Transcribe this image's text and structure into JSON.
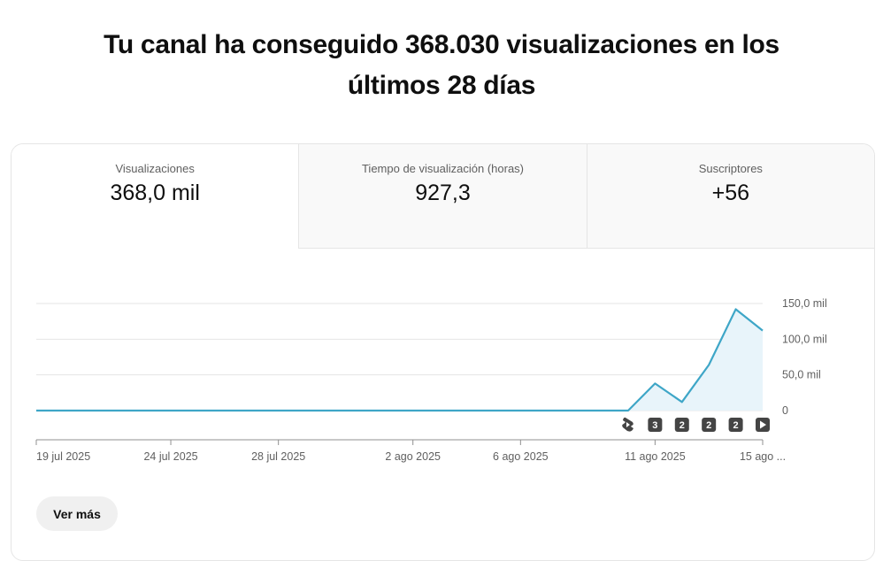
{
  "headline": {
    "line1": "Tu canal ha conseguido 368.030 visualizaciones en los",
    "line2": "últimos 28 días"
  },
  "tabs": [
    {
      "label": "Visualizaciones",
      "value": "368,0 mil",
      "active": true
    },
    {
      "label": "Tiempo de visualización (horas)",
      "value": "927,3",
      "active": false
    },
    {
      "label": "Suscriptores",
      "value": "+56",
      "active": false
    }
  ],
  "chart_data": {
    "type": "area",
    "color": "#3ea6c7",
    "fill_color": "#e8f4fa",
    "y_ticks": [
      {
        "value": 150000,
        "label": "150,0 mil"
      },
      {
        "value": 100000,
        "label": "100,0 mil"
      },
      {
        "value": 50000,
        "label": "50,0 mil"
      },
      {
        "value": 0,
        "label": "0"
      }
    ],
    "ylim": [
      0,
      150000
    ],
    "x_ticks": [
      "19 jul 2025",
      "24 jul 2025",
      "28 jul 2025",
      "2 ago 2025",
      "6 ago 2025",
      "11 ago 2025",
      "15 ago ..."
    ],
    "x_tick_days": [
      19,
      24,
      28,
      33,
      37,
      42,
      46
    ],
    "x_range_days": [
      19,
      46
    ],
    "series": [
      {
        "days": [
          19,
          20,
          21,
          22,
          23,
          24,
          25,
          26,
          27,
          28,
          29,
          30,
          31,
          32,
          33,
          34,
          35,
          36,
          37,
          38,
          39,
          40,
          41,
          42,
          43,
          44,
          45,
          46
        ],
        "values": [
          0,
          0,
          0,
          0,
          0,
          0,
          0,
          0,
          0,
          0,
          0,
          0,
          0,
          0,
          0,
          0,
          0,
          0,
          0,
          0,
          0,
          0,
          0,
          38000,
          12000,
          64000,
          142000,
          112000
        ]
      }
    ],
    "markers": [
      {
        "day": 41,
        "icon": "shorts-icon",
        "label": ""
      },
      {
        "day": 42,
        "icon": "",
        "label": "3"
      },
      {
        "day": 43,
        "icon": "",
        "label": "2"
      },
      {
        "day": 44,
        "icon": "",
        "label": "2"
      },
      {
        "day": 45,
        "icon": "",
        "label": "2"
      },
      {
        "day": 46,
        "icon": "play-icon",
        "label": ""
      }
    ]
  },
  "actions": {
    "more_label": "Ver más"
  }
}
